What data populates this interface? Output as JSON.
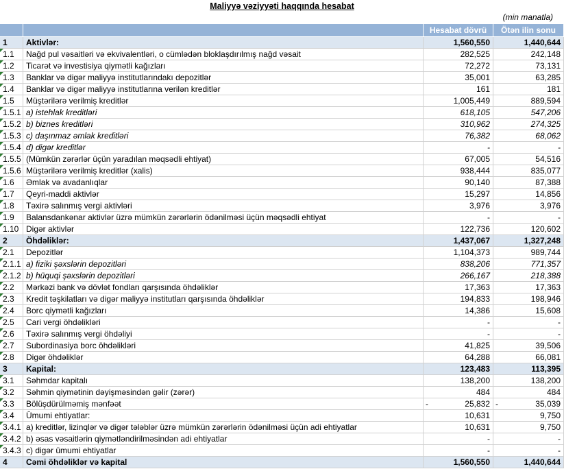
{
  "header": {
    "title": "Maliyyə vəziyyəti haqqında hesabat",
    "unit": "(min manatla)"
  },
  "table": {
    "columns": [
      "Hesabat dövrü",
      "Ötən ilin sonu"
    ],
    "rows": [
      {
        "code": "1",
        "label": "Aktivlər:",
        "current": "1,560,550",
        "previous": "1,440,644",
        "section": true
      },
      {
        "code": "1.1",
        "label": "Nağd pul vəsaitləri və  ekvivalentləri, o cümlədən bloklaşdırılmış nağd vəsait",
        "current": "282,525",
        "previous": "242,148"
      },
      {
        "code": "1.2",
        "label": "Ticarət və investisiya qiymətli kağızları",
        "current": "72,272",
        "previous": "73,131"
      },
      {
        "code": "1.3",
        "label": "Banklar və digər maliyyə institutlarındakı depozitlər",
        "current": "35,001",
        "previous": "63,285"
      },
      {
        "code": "1.4",
        "label": "Banklar və digər maliyyə institutlarına verilən kreditlər",
        "current": "161",
        "previous": "181"
      },
      {
        "code": "1.5",
        "label": "Müştərilərə verilmiş kreditlər",
        "current": "1,005,449",
        "previous": "889,594"
      },
      {
        "code": "1.5.1",
        "label": "a) istehlak kreditləri",
        "current": "618,105",
        "previous": "547,206",
        "italic": true
      },
      {
        "code": "1.5.2",
        "label": "b) biznes kreditləri",
        "current": "310,962",
        "previous": "274,325",
        "italic": true
      },
      {
        "code": "1.5.3",
        "label": "c) daşınmaz əmlak kreditləri",
        "current": "76,382",
        "previous": "68,062",
        "italic": true
      },
      {
        "code": "1.5.4",
        "label": "d) digər kreditlər",
        "current": "-",
        "previous": "-",
        "italic": true
      },
      {
        "code": "1.5.5",
        "label": "(Mümkün zərərlər üçün yaradılan məqsədli ehtiyat)",
        "current": "67,005",
        "previous": "54,516"
      },
      {
        "code": "1.5.6",
        "label": "Müştərilərə verilmiş kreditlər (xalis)",
        "current": "938,444",
        "previous": "835,077"
      },
      {
        "code": "1.6",
        "label": "Əmlak və avadanlıqlar",
        "current": "90,140",
        "previous": "87,388"
      },
      {
        "code": "1.7",
        "label": "Qeyri-maddi aktivlər",
        "current": "15,297",
        "previous": "14,856"
      },
      {
        "code": "1.8",
        "label": "Təxirə salınmış vergi aktivləri",
        "current": "3,976",
        "previous": "3,976"
      },
      {
        "code": "1.9",
        "label": "Balansdankənar aktivlər üzrə mümkün zərərlərin ödənilməsi üçün məqsədli ehtiyat",
        "current": "-",
        "previous": "-"
      },
      {
        "code": "1.10",
        "label": "Digər aktivlər",
        "current": "122,736",
        "previous": "120,602"
      },
      {
        "code": "2",
        "label": "Öhdəliklər:",
        "current": "1,437,067",
        "previous": "1,327,248",
        "section": true
      },
      {
        "code": "2.1",
        "label": "Depozitlər",
        "current": "1,104,373",
        "previous": "989,744"
      },
      {
        "code": "2.1.1",
        "label": "a) fiziki şəxslərin depozitləri",
        "current": "838,206",
        "previous": "771,357",
        "italic": true
      },
      {
        "code": "2.1.2",
        "label": "b) hüquqi şəxslərin depozitləri",
        "current": "266,167",
        "previous": "218,388",
        "italic": true
      },
      {
        "code": "2.2",
        "label": "Mərkəzi bank və dövlət fondları qarşısında öhdəliklər",
        "current": "17,363",
        "previous": "17,363"
      },
      {
        "code": "2.3",
        "label": "Kredit təşkilatları və digər maliyyə institutları qarşısında öhdəliklər",
        "current": "194,833",
        "previous": "198,946"
      },
      {
        "code": "2.4",
        "label": "Borc qiymətli kağızları",
        "current": "14,386",
        "previous": "15,608"
      },
      {
        "code": "2.5",
        "label": "Cari vergi öhdəlikləri",
        "current": "-",
        "previous": "-"
      },
      {
        "code": "2.6",
        "label": "Təxirə salınmış vergi öhdəliyi",
        "current": "-",
        "previous": "-"
      },
      {
        "code": "2.7",
        "label": "Subordinasiya borc öhdəlikləri",
        "current": "41,825",
        "previous": "39,506"
      },
      {
        "code": "2.8",
        "label": "Digər öhdəliklər",
        "current": "64,288",
        "previous": "66,081"
      },
      {
        "code": "3",
        "label": "Kapital:",
        "current": "123,483",
        "previous": "113,395",
        "section": true
      },
      {
        "code": "3.1",
        "label": "Səhmdar kapitalı",
        "current": "138,200",
        "previous": "138,200"
      },
      {
        "code": "3.2",
        "label": "Səhmin qiymətinin dəyişməsindən gəlir (zərər)",
        "current": "484",
        "previous": "484"
      },
      {
        "code": "3.3",
        "label": "Bölüşdürülməmiş mənfəət",
        "current": "25,832",
        "previous": "35,039",
        "current_sign": "-",
        "previous_sign": "-"
      },
      {
        "code": "3.4",
        "label": "Ümumi ehtiyatlar:",
        "current": "10,631",
        "previous": "9,750"
      },
      {
        "code": "3.4.1",
        "label": "a) kreditlər, lizinqlər və digər tələblər üzrə mümkün zərərlərin ödənilməsi üçün adi ehtiyatlar",
        "current": "10,631",
        "previous": "9,750"
      },
      {
        "code": "3.4.2",
        "label": "b) əsas vəsaitlərin qiymətləndirilməsindən adi ehtiyatlar",
        "current": "-",
        "previous": "-"
      },
      {
        "code": "3.4.3",
        "label": "c) digər ümumi ehtiyatlar",
        "current": "-",
        "previous": "-"
      },
      {
        "code": "4",
        "label": "Cəmi öhdəliklər və kapital",
        "current": "1,560,550",
        "previous": "1,440,644",
        "section": true
      }
    ]
  }
}
